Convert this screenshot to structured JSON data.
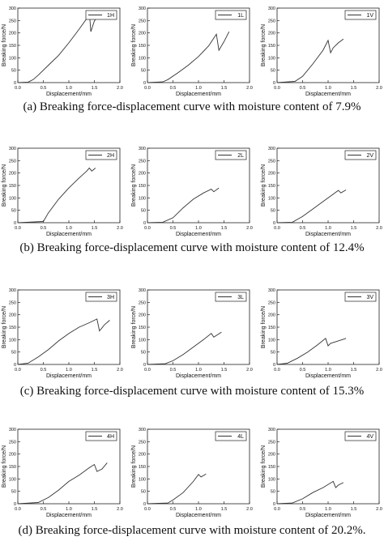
{
  "figure": {
    "captions": [
      "(a) Breaking force-displacement curve with moisture content of 7.9%",
      "(b) Breaking force-displacement curve with moisture content of 12.4%",
      "(c) Breaking force-displacement curve with moisture content of 15.3%",
      "(d) Breaking force-displacement curve with moisture content of 20.2%."
    ]
  },
  "chart_data": [
    {
      "type": "line",
      "group": "a",
      "xlabel": "Displacement/mm",
      "ylabel": "Breaking force/N",
      "xlim": [
        0,
        2.0
      ],
      "ylim": [
        0,
        300
      ],
      "xticks": [
        "0.0",
        "0.5",
        "1.0",
        "1.5",
        "2.0"
      ],
      "yticks": [
        "0",
        "50",
        "100",
        "150",
        "200",
        "250",
        "300"
      ],
      "series": [
        {
          "name": "1H",
          "x": [
            0,
            0.2,
            0.3,
            0.4,
            0.6,
            0.8,
            1.0,
            1.2,
            1.35,
            1.4,
            1.43,
            1.5,
            1.6
          ],
          "y": [
            0,
            2,
            12,
            30,
            70,
            110,
            160,
            215,
            258,
            290,
            205,
            248,
            275
          ]
        }
      ]
    },
    {
      "type": "line",
      "group": "a",
      "xlabel": "Displacement/mm",
      "ylabel": "Breaking force/N",
      "xlim": [
        0,
        2.0
      ],
      "ylim": [
        0,
        300
      ],
      "xticks": [
        "0.0",
        "0.5",
        "1.0",
        "1.5",
        "2.0"
      ],
      "yticks": [
        "0",
        "50",
        "100",
        "150",
        "200",
        "250",
        "300"
      ],
      "series": [
        {
          "name": "1L",
          "x": [
            0,
            0.3,
            0.4,
            0.6,
            0.8,
            1.0,
            1.2,
            1.35,
            1.4,
            1.5,
            1.6
          ],
          "y": [
            0,
            3,
            12,
            40,
            70,
            105,
            148,
            195,
            130,
            165,
            205
          ]
        }
      ]
    },
    {
      "type": "line",
      "group": "a",
      "xlabel": "Displacement/mm",
      "ylabel": "Breaking force/N",
      "xlim": [
        0,
        2.0
      ],
      "ylim": [
        0,
        300
      ],
      "xticks": [
        "0.0",
        "0.5",
        "1.0",
        "1.5",
        "2.0"
      ],
      "yticks": [
        "0",
        "50",
        "100",
        "150",
        "200",
        "250",
        "300"
      ],
      "series": [
        {
          "name": "1V",
          "x": [
            0,
            0.35,
            0.5,
            0.7,
            0.9,
            1.0,
            1.05,
            1.1,
            1.2,
            1.3
          ],
          "y": [
            0,
            5,
            25,
            75,
            130,
            170,
            120,
            140,
            160,
            175
          ]
        }
      ]
    },
    {
      "type": "line",
      "group": "b",
      "xlabel": "Displacement/mm",
      "ylabel": "Breaking force/N",
      "xlim": [
        0,
        2.0
      ],
      "ylim": [
        0,
        300
      ],
      "xticks": [
        "0.0",
        "0.5",
        "1.0",
        "1.5",
        "2.0"
      ],
      "yticks": [
        "0",
        "50",
        "100",
        "150",
        "200",
        "250",
        "300"
      ],
      "series": [
        {
          "name": "2H",
          "x": [
            0,
            0.5,
            0.6,
            0.8,
            1.0,
            1.2,
            1.35,
            1.4,
            1.45,
            1.52
          ],
          "y": [
            0,
            5,
            40,
            95,
            140,
            180,
            208,
            220,
            208,
            220
          ]
        }
      ]
    },
    {
      "type": "line",
      "group": "b",
      "xlabel": "Displacement/mm",
      "ylabel": "Breaking force/N",
      "xlim": [
        0,
        2.0
      ],
      "ylim": [
        0,
        300
      ],
      "xticks": [
        "0.0",
        "0.5",
        "1.0",
        "1.5",
        "2.0"
      ],
      "yticks": [
        "0",
        "50",
        "100",
        "150",
        "200",
        "250",
        "300"
      ],
      "series": [
        {
          "name": "2L",
          "x": [
            0,
            0.3,
            0.5,
            0.7,
            0.9,
            1.1,
            1.25,
            1.3,
            1.4
          ],
          "y": [
            0,
            2,
            20,
            60,
            95,
            120,
            135,
            125,
            140
          ]
        }
      ]
    },
    {
      "type": "line",
      "group": "b",
      "xlabel": "Displacement/mm",
      "ylabel": "Breaking force/N",
      "xlim": [
        0,
        2.0
      ],
      "ylim": [
        0,
        300
      ],
      "xticks": [
        "0.0",
        "0.5",
        "1.0",
        "1.5",
        "2.0"
      ],
      "yticks": [
        "0",
        "50",
        "100",
        "150",
        "200",
        "250",
        "300"
      ],
      "series": [
        {
          "name": "2V",
          "x": [
            0,
            0.3,
            0.5,
            0.7,
            0.9,
            1.1,
            1.2,
            1.25,
            1.35
          ],
          "y": [
            0,
            2,
            25,
            55,
            85,
            115,
            130,
            120,
            132
          ]
        }
      ]
    },
    {
      "type": "line",
      "group": "c",
      "xlabel": "Displacement/mm",
      "ylabel": "Breaking force/N",
      "xlim": [
        0,
        2.0
      ],
      "ylim": [
        0,
        300
      ],
      "xticks": [
        "0.0",
        "0.5",
        "1.0",
        "1.5",
        "2.0"
      ],
      "yticks": [
        "0",
        "50",
        "100",
        "150",
        "200",
        "250",
        "300"
      ],
      "series": [
        {
          "name": "3H",
          "x": [
            0,
            0.2,
            0.4,
            0.6,
            0.8,
            1.0,
            1.2,
            1.4,
            1.55,
            1.6,
            1.7,
            1.8
          ],
          "y": [
            0,
            5,
            30,
            60,
            95,
            125,
            150,
            168,
            183,
            135,
            160,
            178
          ]
        }
      ]
    },
    {
      "type": "line",
      "group": "c",
      "xlabel": "Displacement/mm",
      "ylabel": "Breaking force/N",
      "xlim": [
        0,
        2.0
      ],
      "ylim": [
        0,
        300
      ],
      "xticks": [
        "0.0",
        "0.5",
        "1.0",
        "1.5",
        "2.0"
      ],
      "yticks": [
        "0",
        "50",
        "100",
        "150",
        "200",
        "250",
        "300"
      ],
      "series": [
        {
          "name": "3L",
          "x": [
            0,
            0.35,
            0.5,
            0.7,
            0.9,
            1.1,
            1.25,
            1.3,
            1.45
          ],
          "y": [
            0,
            3,
            15,
            40,
            70,
            100,
            125,
            110,
            130
          ]
        }
      ]
    },
    {
      "type": "line",
      "group": "c",
      "xlabel": "Displacement/mm",
      "ylabel": "Breaking force/N",
      "xlim": [
        0,
        2.0
      ],
      "ylim": [
        0,
        300
      ],
      "xticks": [
        "0.0",
        "0.5",
        "1.0",
        "1.5",
        "2.0"
      ],
      "yticks": [
        "0",
        "50",
        "100",
        "150",
        "200",
        "250",
        "300"
      ],
      "series": [
        {
          "name": "3V",
          "x": [
            0,
            0.2,
            0.4,
            0.6,
            0.8,
            0.95,
            1.0,
            1.05,
            1.2,
            1.35
          ],
          "y": [
            0,
            5,
            25,
            50,
            80,
            105,
            75,
            85,
            95,
            105
          ]
        }
      ]
    },
    {
      "type": "line",
      "group": "d",
      "xlabel": "Displacement/mm",
      "ylabel": "Breaking force/N",
      "xlim": [
        0,
        2.0
      ],
      "ylim": [
        0,
        300
      ],
      "xticks": [
        "0.0",
        "0.5",
        "1.0",
        "1.5",
        "2.0"
      ],
      "yticks": [
        "0",
        "50",
        "100",
        "150",
        "200",
        "250",
        "300"
      ],
      "series": [
        {
          "name": "4H",
          "x": [
            0,
            0.4,
            0.6,
            0.8,
            1.0,
            1.2,
            1.4,
            1.5,
            1.55,
            1.65,
            1.75
          ],
          "y": [
            0,
            5,
            25,
            55,
            90,
            115,
            145,
            158,
            130,
            140,
            165
          ]
        }
      ]
    },
    {
      "type": "line",
      "group": "d",
      "xlabel": "Displacement/mm",
      "ylabel": "Breaking force/N",
      "xlim": [
        0,
        2.0
      ],
      "ylim": [
        0,
        300
      ],
      "xticks": [
        "0.0",
        "0.5",
        "1.0",
        "1.5",
        "2.0"
      ],
      "yticks": [
        "0",
        "50",
        "100",
        "150",
        "200",
        "250",
        "300"
      ],
      "series": [
        {
          "name": "4L",
          "x": [
            0,
            0.4,
            0.5,
            0.7,
            0.9,
            1.0,
            1.05,
            1.15
          ],
          "y": [
            0,
            3,
            15,
            45,
            90,
            118,
            108,
            120
          ]
        }
      ]
    },
    {
      "type": "line",
      "group": "d",
      "xlabel": "Displacement/mm",
      "ylabel": "Breaking force/N",
      "xlim": [
        0,
        2.0
      ],
      "ylim": [
        0,
        300
      ],
      "xticks": [
        "0.0",
        "0.5",
        "1.0",
        "1.5",
        "2.0"
      ],
      "yticks": [
        "0",
        "50",
        "100",
        "150",
        "200",
        "250",
        "300"
      ],
      "series": [
        {
          "name": "4V",
          "x": [
            0,
            0.3,
            0.5,
            0.7,
            0.9,
            1.1,
            1.15,
            1.2,
            1.3
          ],
          "y": [
            0,
            3,
            20,
            45,
            65,
            90,
            65,
            75,
            85
          ]
        }
      ]
    }
  ]
}
